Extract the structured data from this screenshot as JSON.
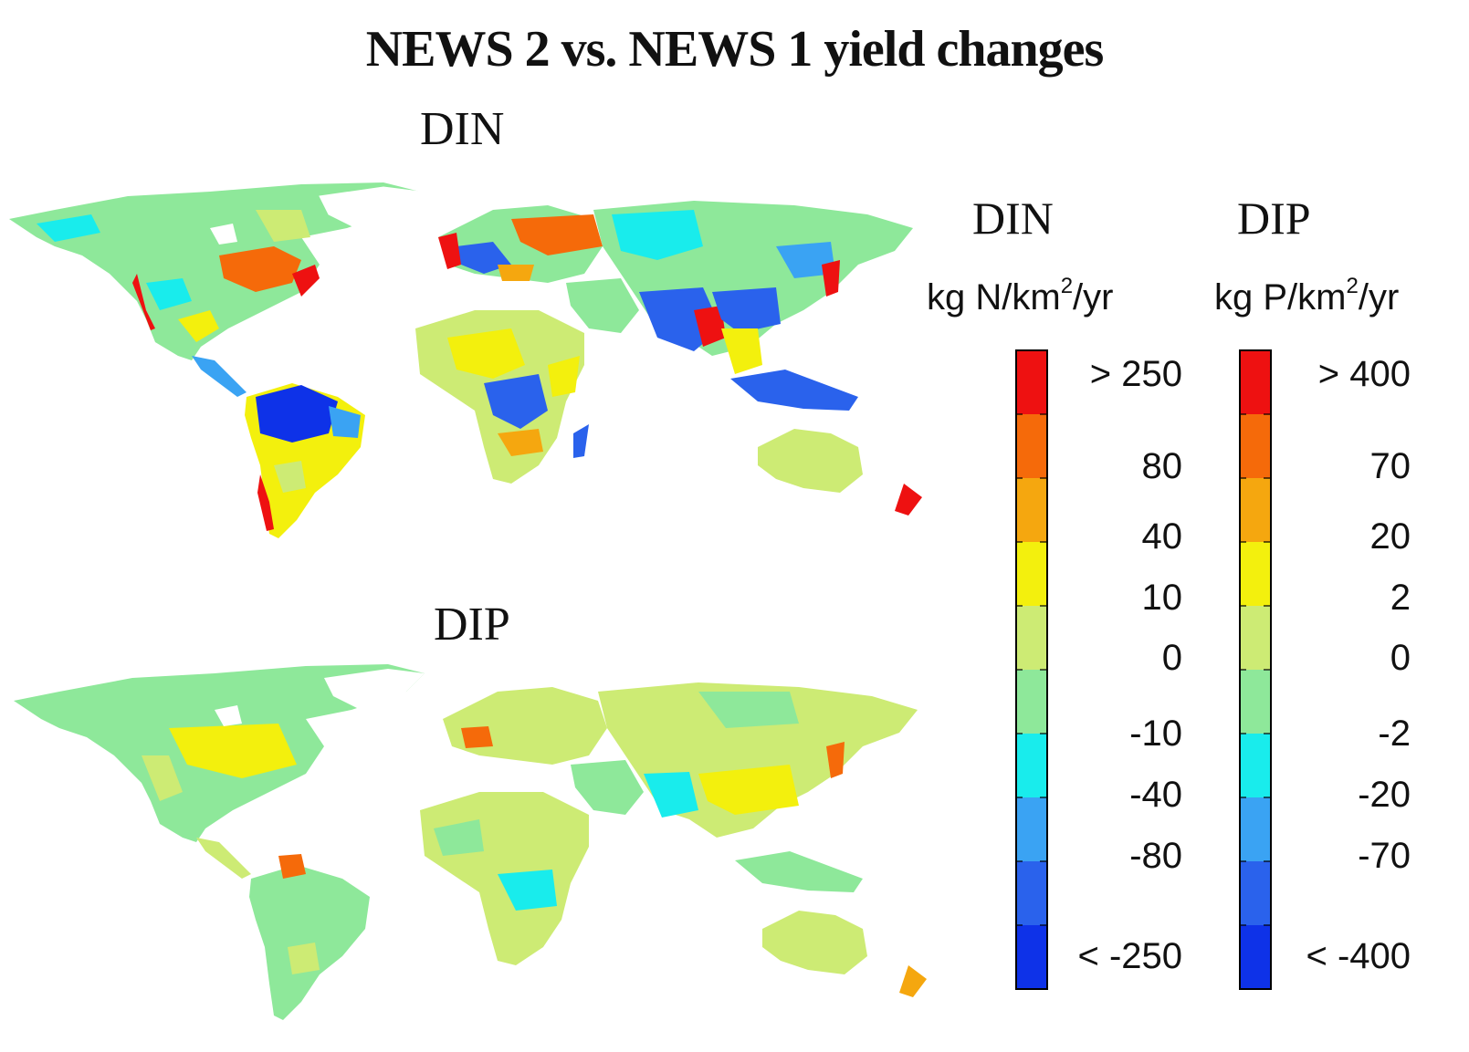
{
  "title": "NEWS 2 vs. NEWS 1 yield changes",
  "maps": {
    "din_label": "DIN",
    "dip_label": "DIP"
  },
  "legend": {
    "din": {
      "heading": "DIN",
      "unit_prefix": "kg N/km",
      "unit_sup": "2",
      "unit_suffix": "/yr",
      "ticks": [
        "> 250",
        "80",
        "40",
        "10",
        "0",
        "-10",
        "-40",
        "-80",
        "< -250"
      ]
    },
    "dip": {
      "heading": "DIP",
      "unit_prefix": "kg P/km",
      "unit_sup": "2",
      "unit_suffix": "/yr",
      "ticks": [
        "> 400",
        "70",
        "20",
        "2",
        "0",
        "-2",
        "-20",
        "-70",
        "< -400"
      ]
    },
    "colors": [
      "#ee1111",
      "#f56a0a",
      "#f5a70f",
      "#f3f00d",
      "#cdeb74",
      "#8ee89a",
      "#19ecec",
      "#3aa3f3",
      "#2a62ec",
      "#0e32e8"
    ]
  }
}
